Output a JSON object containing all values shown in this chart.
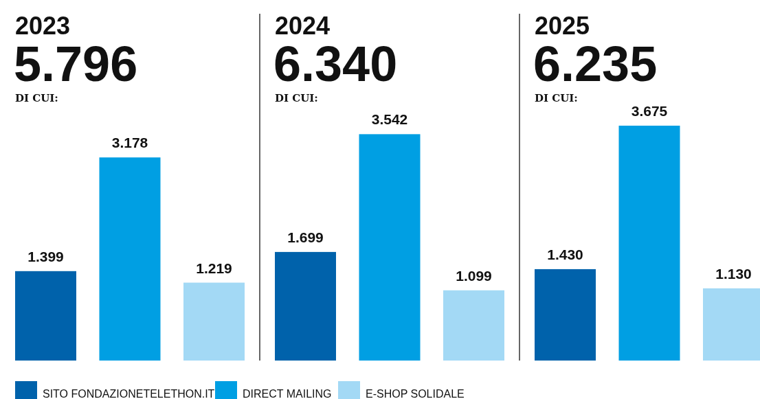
{
  "chart_data": [
    {
      "type": "bar",
      "title": "2023",
      "subtitle": "5.796",
      "annotations": [
        "DI CUI:"
      ],
      "categories": [
        null
      ],
      "legend": "bottom",
      "series": [
        {
          "name": "SITO FONDAZIONETELETHON.IT",
          "color": "#0062ab",
          "values": [
            1399
          ],
          "value_labels": [
            "1.399"
          ]
        },
        {
          "name": "DIRECT MAILING",
          "color": "#009fe3",
          "values": [
            3178
          ],
          "value_labels": [
            "3.178"
          ]
        },
        {
          "name": "E-SHOP SOLIDALE",
          "color": "#a3d9f5",
          "values": [
            1219
          ],
          "value_labels": [
            "1.219"
          ]
        }
      ]
    },
    {
      "type": "bar",
      "title": "2024",
      "subtitle": "6.340",
      "annotations": [
        "DI CUI:"
      ],
      "categories": [
        null
      ],
      "series": [
        {
          "color": "#0062ab",
          "values": [
            1699
          ],
          "value_labels": [
            "1.699"
          ]
        },
        {
          "color": "#009fe3",
          "values": [
            3542
          ],
          "value_labels": [
            "3.542"
          ]
        },
        {
          "color": "#a3d9f5",
          "values": [
            1099
          ],
          "value_labels": [
            "1.099"
          ]
        }
      ]
    },
    {
      "type": "bar",
      "title": "2025",
      "subtitle": "6.235",
      "annotations": [
        "DI CUI:"
      ],
      "categories": [
        null
      ],
      "series": [
        {
          "color": "#0062ab",
          "values": [
            1430
          ],
          "value_labels": [
            "1.430"
          ]
        },
        {
          "color": "#009fe3",
          "values": [
            3675
          ],
          "value_labels": [
            "3.675"
          ]
        },
        {
          "color": "#a3d9f5",
          "values": [
            1130
          ],
          "value_labels": [
            "1.130"
          ]
        }
      ]
    }
  ]
}
